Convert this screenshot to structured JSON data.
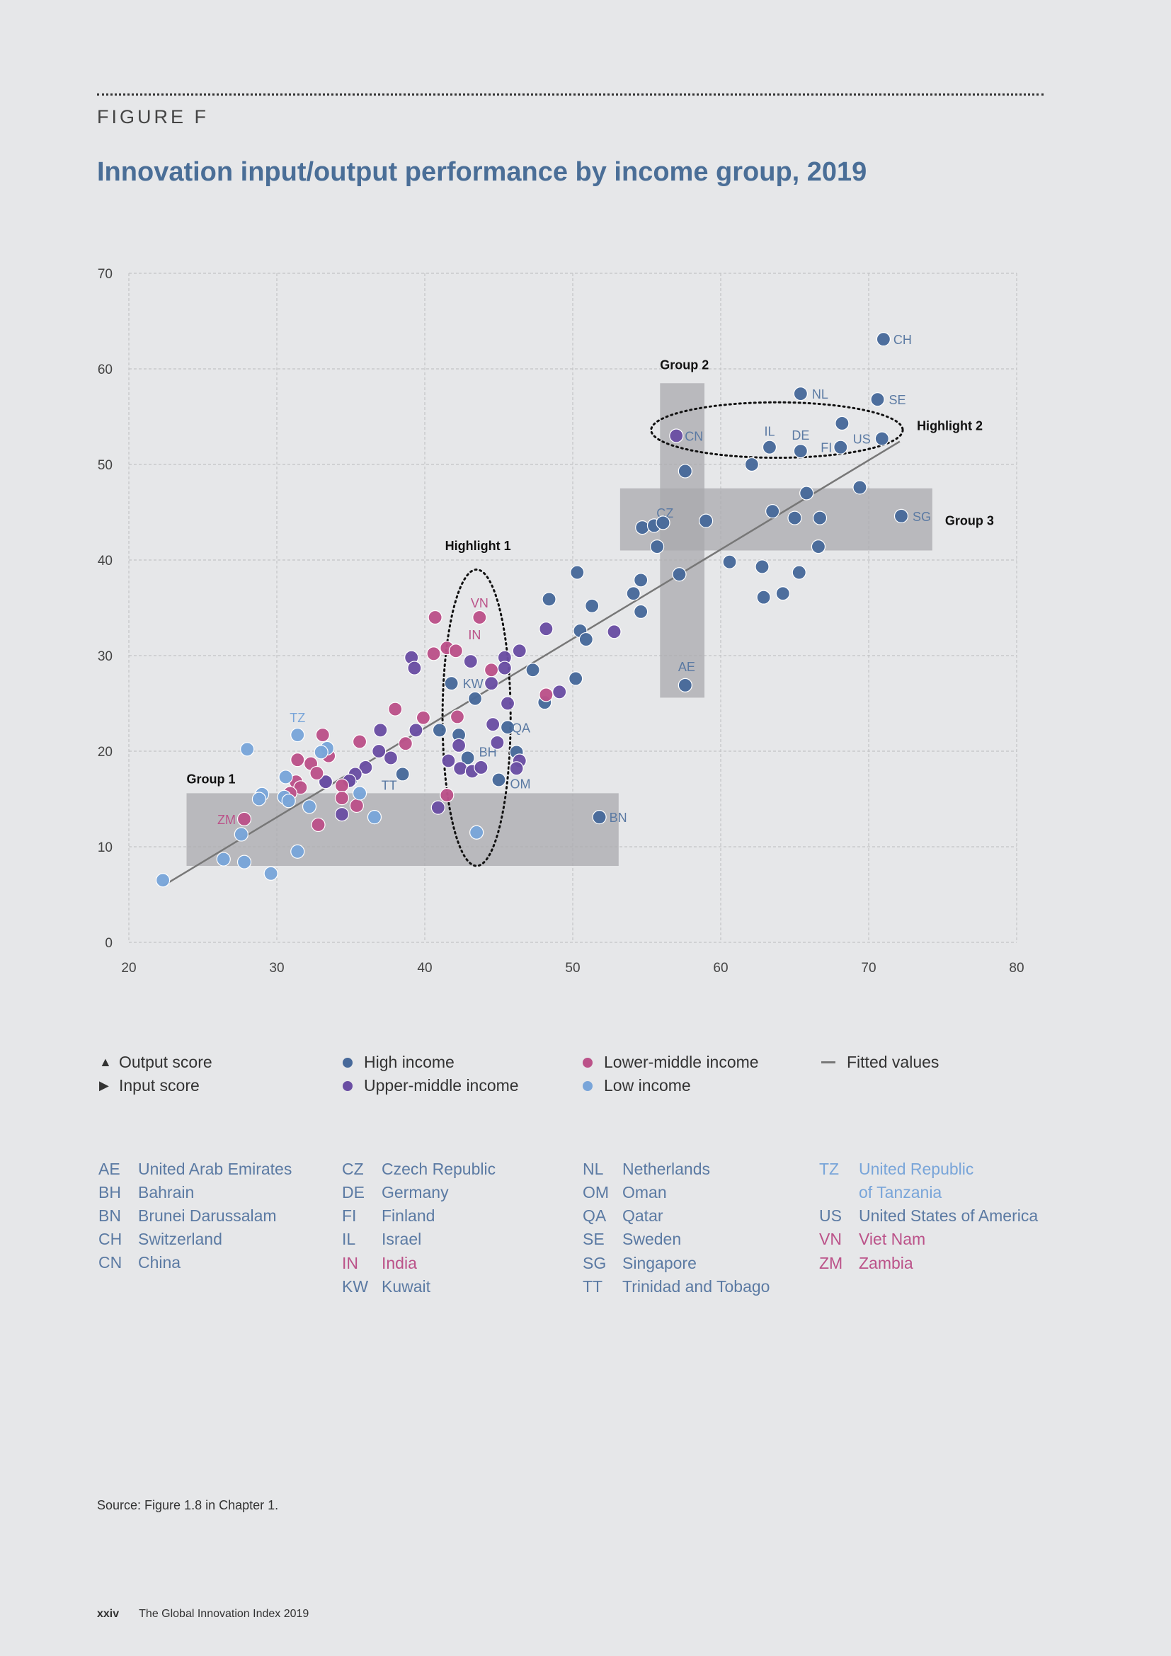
{
  "figure_label": "FIGURE F",
  "title": "Innovation input/output performance by income group, 2019",
  "colors": {
    "high": "#47699a",
    "upper_middle": "#6a4ea3",
    "lower_middle": "#bb5289",
    "low": "#79a5d9",
    "fitted": "#777777",
    "band": "#a9aaad",
    "text_label": "#5b7aa3"
  },
  "chart_data": {
    "type": "scatter",
    "title": "Innovation input/output performance by income group, 2019",
    "xlim": [
      20,
      80
    ],
    "ylim": [
      0,
      70
    ],
    "x_ticks": [
      20,
      30,
      40,
      50,
      60,
      70,
      80
    ],
    "y_ticks": [
      0,
      10,
      20,
      30,
      40,
      50,
      60,
      70
    ],
    "grid": true,
    "fitted_line": {
      "name": "Fitted values",
      "x": [
        22.3,
        72.1
      ],
      "y": [
        5.9,
        52.4
      ]
    },
    "regions": [
      {
        "label": "Group 1",
        "x": [
          23.9,
          53.1
        ],
        "y": [
          8,
          15.6
        ]
      },
      {
        "label": "Group 2",
        "x": [
          55.9,
          58.9
        ],
        "y": [
          25.6,
          58.5
        ]
      },
      {
        "label": "Group 3",
        "x": [
          53.2,
          74.3
        ],
        "y": [
          41,
          47.5
        ]
      }
    ],
    "highlights": [
      {
        "label": "Highlight 1",
        "cx": 43.5,
        "cy": 23.5,
        "rx": 2.3,
        "ry": 15.5
      },
      {
        "label": "Highlight 2",
        "cx": 63.8,
        "cy": 53.6,
        "rx": 8.5,
        "ry": 2.9
      }
    ],
    "series": [
      {
        "name": "High income",
        "key": "high",
        "points": [
          [
            71.0,
            63.1,
            "CH"
          ],
          [
            65.4,
            57.4,
            "NL"
          ],
          [
            70.6,
            56.8,
            "SE"
          ],
          [
            68.2,
            54.3,
            ""
          ],
          [
            70.9,
            52.7,
            "US"
          ],
          [
            68.1,
            51.8,
            "FI"
          ],
          [
            65.4,
            51.4,
            "DE"
          ],
          [
            63.3,
            51.8,
            "IL"
          ],
          [
            62.1,
            50.0,
            ""
          ],
          [
            57.6,
            49.3,
            ""
          ],
          [
            69.4,
            47.6,
            ""
          ],
          [
            65.8,
            47.0,
            ""
          ],
          [
            72.2,
            44.6,
            "SG"
          ],
          [
            63.5,
            45.1,
            ""
          ],
          [
            66.7,
            44.4,
            ""
          ],
          [
            65.0,
            44.4,
            ""
          ],
          [
            59.0,
            44.1,
            ""
          ],
          [
            54.7,
            43.4,
            "CZ"
          ],
          [
            55.5,
            43.6,
            ""
          ],
          [
            56.1,
            43.9,
            ""
          ],
          [
            55.7,
            41.4,
            ""
          ],
          [
            66.6,
            41.4,
            ""
          ],
          [
            60.6,
            39.8,
            ""
          ],
          [
            62.8,
            39.3,
            ""
          ],
          [
            65.3,
            38.7,
            ""
          ],
          [
            57.2,
            38.5,
            ""
          ],
          [
            50.3,
            38.7,
            ""
          ],
          [
            54.6,
            37.9,
            ""
          ],
          [
            54.1,
            36.5,
            ""
          ],
          [
            64.2,
            36.5,
            ""
          ],
          [
            62.9,
            36.1,
            ""
          ],
          [
            48.4,
            35.9,
            ""
          ],
          [
            51.3,
            35.2,
            ""
          ],
          [
            54.6,
            34.6,
            ""
          ],
          [
            50.5,
            32.6,
            ""
          ],
          [
            50.9,
            31.7,
            ""
          ],
          [
            47.3,
            28.5,
            ""
          ],
          [
            50.2,
            27.6,
            ""
          ],
          [
            57.6,
            26.9,
            "AE"
          ],
          [
            41.8,
            27.1,
            "KW"
          ],
          [
            43.4,
            25.5,
            ""
          ],
          [
            48.1,
            25.1,
            ""
          ],
          [
            41.0,
            22.2,
            ""
          ],
          [
            42.3,
            21.7,
            ""
          ],
          [
            42.9,
            19.3,
            "BH"
          ],
          [
            45.6,
            22.5,
            "QA"
          ],
          [
            46.2,
            19.9,
            ""
          ],
          [
            45.0,
            17.0,
            "OM"
          ],
          [
            38.5,
            17.6,
            "TT"
          ],
          [
            51.8,
            13.1,
            "BN"
          ],
          [
            33.3,
            16.8,
            ""
          ],
          [
            35.0,
            17.0,
            ""
          ]
        ]
      },
      {
        "name": "Upper-middle income",
        "key": "upper_middle",
        "points": [
          [
            57.0,
            53.0,
            "CN"
          ],
          [
            52.8,
            32.5,
            ""
          ],
          [
            48.2,
            32.8,
            ""
          ],
          [
            46.4,
            30.5,
            ""
          ],
          [
            45.4,
            29.8,
            ""
          ],
          [
            43.1,
            29.4,
            ""
          ],
          [
            39.1,
            29.8,
            ""
          ],
          [
            39.3,
            28.7,
            ""
          ],
          [
            45.4,
            28.7,
            ""
          ],
          [
            44.5,
            27.1,
            ""
          ],
          [
            49.1,
            26.2,
            ""
          ],
          [
            45.6,
            25.0,
            ""
          ],
          [
            44.6,
            22.8,
            ""
          ],
          [
            37.0,
            22.2,
            ""
          ],
          [
            39.4,
            22.2,
            ""
          ],
          [
            44.9,
            20.9,
            ""
          ],
          [
            42.3,
            20.6,
            ""
          ],
          [
            36.9,
            20.0,
            ""
          ],
          [
            37.7,
            19.3,
            ""
          ],
          [
            41.6,
            19.0,
            ""
          ],
          [
            46.4,
            19.0,
            ""
          ],
          [
            36.0,
            18.3,
            ""
          ],
          [
            42.4,
            18.2,
            ""
          ],
          [
            43.2,
            17.9,
            ""
          ],
          [
            43.8,
            18.3,
            ""
          ],
          [
            46.2,
            18.2,
            ""
          ],
          [
            35.3,
            17.6,
            ""
          ],
          [
            34.9,
            16.9,
            ""
          ],
          [
            33.3,
            16.8,
            ""
          ],
          [
            40.9,
            14.1,
            ""
          ],
          [
            34.4,
            13.4,
            ""
          ]
        ]
      },
      {
        "name": "Lower-middle income",
        "key": "lower_middle",
        "points": [
          [
            43.7,
            34.0,
            "VN"
          ],
          [
            40.7,
            34.0,
            ""
          ],
          [
            41.5,
            30.8,
            "IN"
          ],
          [
            42.1,
            30.5,
            ""
          ],
          [
            40.6,
            30.2,
            ""
          ],
          [
            44.5,
            28.5,
            ""
          ],
          [
            48.2,
            25.9,
            ""
          ],
          [
            38.0,
            24.4,
            ""
          ],
          [
            39.9,
            23.5,
            ""
          ],
          [
            42.2,
            23.6,
            ""
          ],
          [
            33.1,
            21.7,
            ""
          ],
          [
            35.6,
            21.0,
            ""
          ],
          [
            38.7,
            20.8,
            ""
          ],
          [
            33.5,
            19.5,
            ""
          ],
          [
            31.4,
            19.1,
            ""
          ],
          [
            32.3,
            18.7,
            ""
          ],
          [
            32.7,
            17.7,
            ""
          ],
          [
            31.3,
            16.8,
            ""
          ],
          [
            31.6,
            16.2,
            ""
          ],
          [
            30.9,
            15.6,
            ""
          ],
          [
            34.4,
            16.4,
            ""
          ],
          [
            34.4,
            15.1,
            ""
          ],
          [
            35.4,
            14.3,
            ""
          ],
          [
            41.5,
            15.4,
            ""
          ],
          [
            32.8,
            12.3,
            ""
          ],
          [
            27.8,
            12.9,
            "ZM"
          ]
        ]
      },
      {
        "name": "Low income",
        "key": "low",
        "points": [
          [
            28.0,
            20.2,
            ""
          ],
          [
            31.4,
            21.7,
            "TZ"
          ],
          [
            33.4,
            20.3,
            ""
          ],
          [
            33.0,
            19.9,
            ""
          ],
          [
            30.6,
            17.3,
            ""
          ],
          [
            29.0,
            15.5,
            ""
          ],
          [
            28.8,
            15.0,
            ""
          ],
          [
            30.5,
            15.2,
            ""
          ],
          [
            30.8,
            14.8,
            ""
          ],
          [
            35.6,
            15.6,
            ""
          ],
          [
            32.2,
            14.2,
            ""
          ],
          [
            36.6,
            13.1,
            ""
          ],
          [
            27.6,
            11.3,
            ""
          ],
          [
            43.5,
            11.5,
            ""
          ],
          [
            31.4,
            9.5,
            ""
          ],
          [
            26.4,
            8.7,
            ""
          ],
          [
            27.8,
            8.4,
            ""
          ],
          [
            29.6,
            7.2,
            ""
          ],
          [
            22.3,
            6.5,
            ""
          ]
        ]
      }
    ]
  },
  "legend": {
    "shape_items": [
      {
        "symbol": "▲",
        "label": "Output score"
      },
      {
        "symbol": "▶",
        "label": "Input score"
      }
    ],
    "income_items": [
      {
        "key": "high",
        "label": "High income"
      },
      {
        "key": "upper_middle",
        "label": "Upper-middle income"
      },
      {
        "key": "lower_middle",
        "label": "Lower-middle income"
      },
      {
        "key": "low",
        "label": "Low income"
      }
    ],
    "fitted_label": "Fitted values"
  },
  "country_codes": [
    {
      "code": "AE",
      "name": "United Arab Emirates",
      "group": "high"
    },
    {
      "code": "BH",
      "name": "Bahrain",
      "group": "high"
    },
    {
      "code": "BN",
      "name": "Brunei Darussalam",
      "group": "high"
    },
    {
      "code": "CH",
      "name": "Switzerland",
      "group": "high"
    },
    {
      "code": "CN",
      "name": "China",
      "group": "upper_middle"
    },
    {
      "code": "CZ",
      "name": "Czech Republic",
      "group": "high"
    },
    {
      "code": "DE",
      "name": "Germany",
      "group": "high"
    },
    {
      "code": "FI",
      "name": "Finland",
      "group": "high"
    },
    {
      "code": "IL",
      "name": "Israel",
      "group": "high"
    },
    {
      "code": "IN",
      "name": "India",
      "group": "lower_middle"
    },
    {
      "code": "KW",
      "name": "Kuwait",
      "group": "high"
    },
    {
      "code": "NL",
      "name": "Netherlands",
      "group": "high"
    },
    {
      "code": "OM",
      "name": "Oman",
      "group": "high"
    },
    {
      "code": "QA",
      "name": "Qatar",
      "group": "high"
    },
    {
      "code": "SE",
      "name": "Sweden",
      "group": "high"
    },
    {
      "code": "SG",
      "name": "Singapore",
      "group": "high"
    },
    {
      "code": "TT",
      "name": "Trinidad and Tobago",
      "group": "high"
    },
    {
      "code": "TZ",
      "name": "United Republic",
      "name2": "of Tanzania",
      "group": "low"
    },
    {
      "code": "US",
      "name": "United States of America",
      "group": "high"
    },
    {
      "code": "VN",
      "name": "Viet Nam",
      "group": "lower_middle"
    },
    {
      "code": "ZM",
      "name": "Zambia",
      "group": "lower_middle"
    }
  ],
  "source": "Source: Figure 1.8 in Chapter 1.",
  "footer": {
    "page": "xxiv",
    "publication": "The Global Innovation Index 2019"
  }
}
